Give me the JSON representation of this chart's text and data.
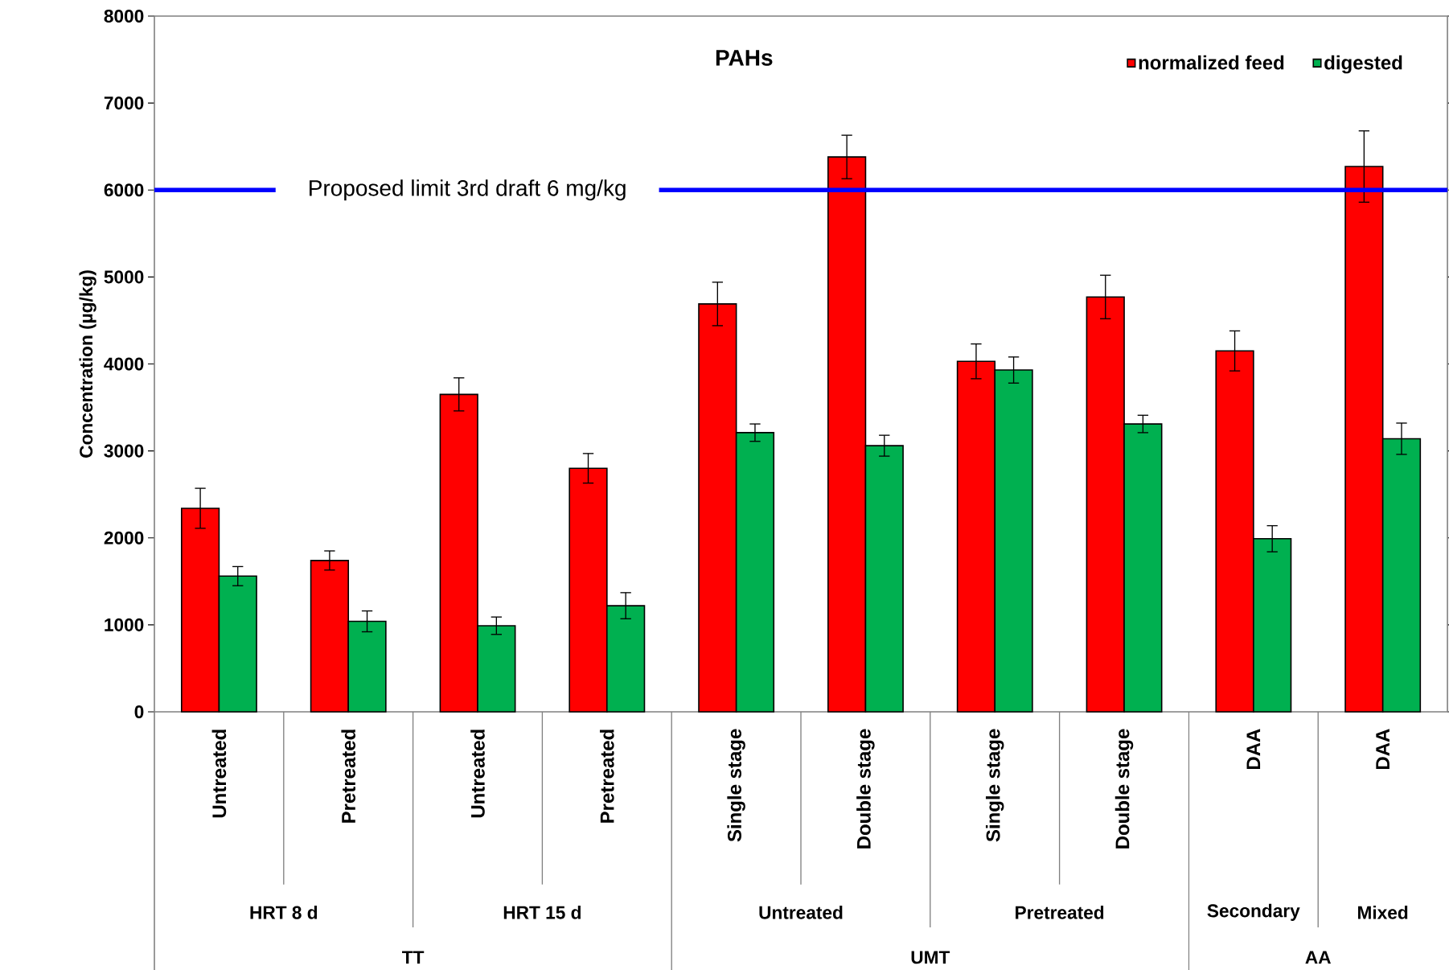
{
  "chart_data": {
    "type": "bar",
    "title": "PAHs",
    "ylabel": "Concentration (µg/kg)",
    "categories": [
      "Untreated",
      "Pretreated",
      "Untreated",
      "Pretreated",
      "Single stage",
      "Double stage",
      "Single stage",
      "Double stage",
      "DAA",
      "DAA"
    ],
    "series": [
      {
        "name": "normalized feed",
        "color": "#ff0000",
        "values": [
          2340,
          1740,
          3650,
          2800,
          4690,
          6380,
          4030,
          4770,
          4150,
          6270
        ],
        "errors": [
          230,
          110,
          190,
          170,
          250,
          250,
          200,
          250,
          230,
          410
        ]
      },
      {
        "name": "digested",
        "color": "#00b050",
        "values": [
          1560,
          1040,
          990,
          1220,
          3210,
          3060,
          3930,
          3310,
          1990,
          3140
        ],
        "errors": [
          110,
          120,
          100,
          150,
          100,
          120,
          150,
          100,
          150,
          180
        ]
      }
    ],
    "ylim": [
      0,
      8000
    ],
    "yticks": [
      0,
      1000,
      2000,
      3000,
      4000,
      5000,
      6000,
      7000,
      8000
    ],
    "ref_lines": [
      {
        "axis": "y",
        "value": 6000,
        "label": "Proposed limit 3rd draft 6 mg/kg",
        "color": "#0000ff"
      }
    ],
    "annotations": [
      "HRT 8 d",
      "HRT 15 d",
      "Untreated",
      "Pretreated",
      "Secondary",
      "Mixed",
      "TT",
      "UMT",
      "AA"
    ],
    "legend": "top right",
    "grid": false
  }
}
